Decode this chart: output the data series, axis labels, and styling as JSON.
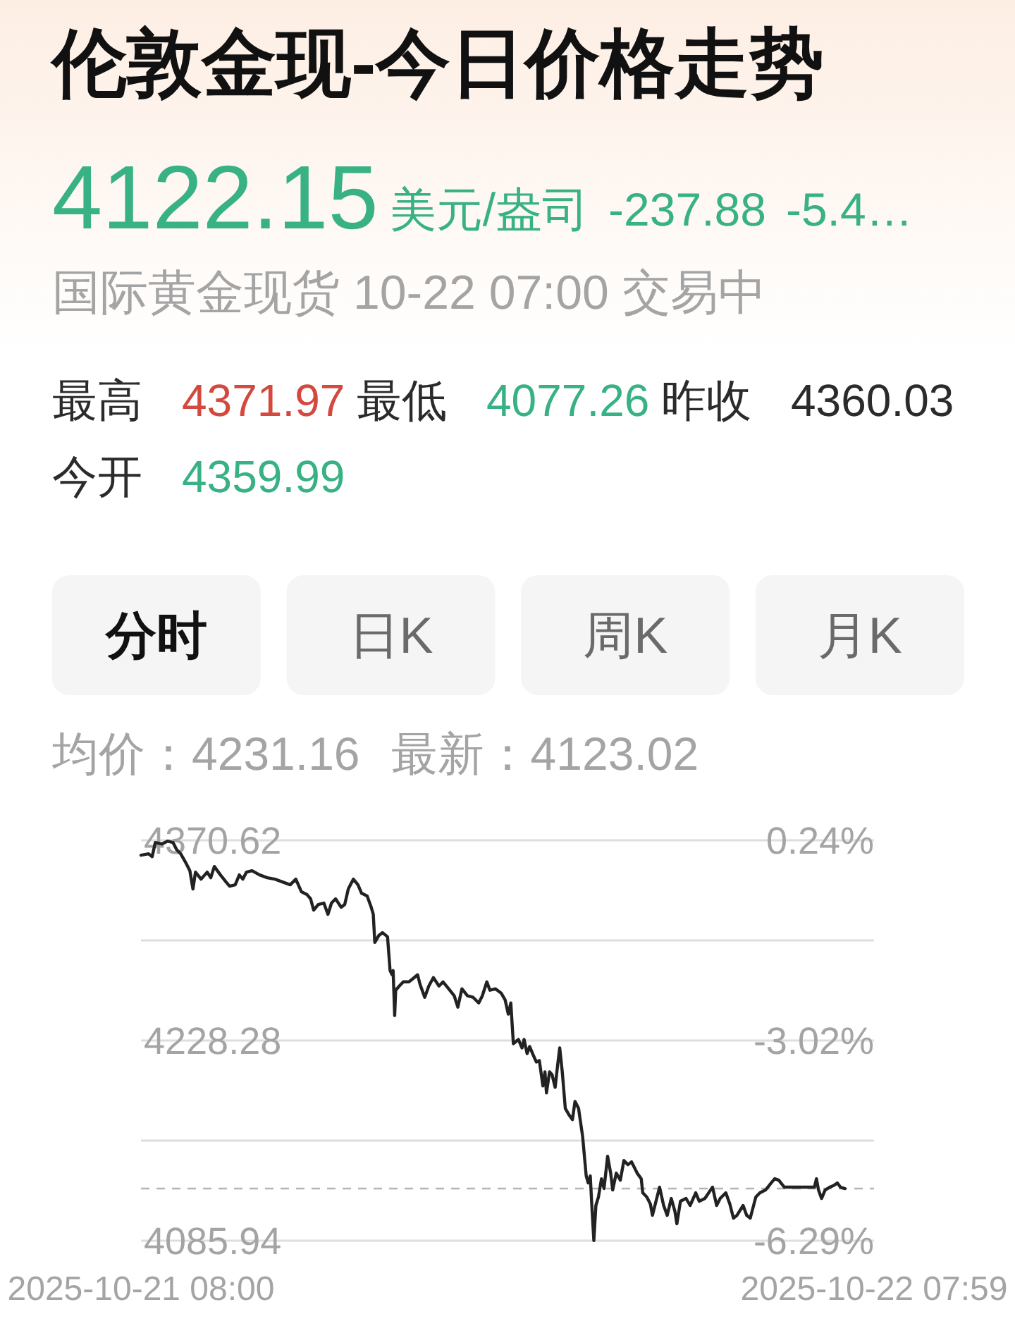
{
  "chart_data": {
    "type": "line",
    "title": "伦敦金现-今日价格走势",
    "subtitle": "国际黄金现货 10-22 07:00 交易中",
    "annotations": [
      "4122.15",
      "美元/盎司",
      "-237.88",
      "-5.4…",
      "最高",
      "4371.97",
      "最低",
      "4077.26",
      "昨收",
      "4360.03",
      "今开",
      "4359.99",
      "分时",
      "日K",
      "周K",
      "月K",
      "均价：4231.16",
      "最新：4123.02"
    ],
    "x": [
      "2025-10-21T08:00",
      "2025-10-21T08:15",
      "2025-10-21T08:22",
      "2025-10-21T08:28",
      "2025-10-21T08:41",
      "2025-10-21T08:52",
      "2025-10-21T09:03",
      "2025-10-21T09:10",
      "2025-10-21T09:18",
      "2025-10-21T09:29",
      "2025-10-21T09:36",
      "2025-10-21T09:42",
      "2025-10-21T09:47",
      "2025-10-21T09:58",
      "2025-10-21T10:10",
      "2025-10-21T10:17",
      "2025-10-21T10:24",
      "2025-10-21T10:36",
      "2025-10-21T10:47",
      "2025-10-21T10:54",
      "2025-10-21T11:05",
      "2025-10-21T11:13",
      "2025-10-21T11:20",
      "2025-10-21T11:27",
      "2025-10-21T11:38",
      "2025-10-21T11:53",
      "2025-10-21T12:08",
      "2025-10-21T12:23",
      "2025-10-21T12:38",
      "2025-10-21T12:53",
      "2025-10-21T13:04",
      "2025-10-21T13:15",
      "2025-10-21T13:26",
      "2025-10-21T13:33",
      "2025-10-21T13:39",
      "2025-10-21T13:48",
      "2025-10-21T13:59",
      "2025-10-21T14:07",
      "2025-10-21T14:14",
      "2025-10-21T14:22",
      "2025-10-21T14:33",
      "2025-10-21T14:40",
      "2025-10-21T14:47",
      "2025-10-21T14:57",
      "2025-10-21T15:06",
      "2025-10-21T15:13",
      "2025-10-21T15:24",
      "2025-10-21T15:32",
      "2025-10-21T15:36",
      "2025-10-21T15:39",
      "2025-10-21T15:47",
      "2025-10-21T15:54",
      "2025-10-21T16:04",
      "2025-10-21T16:09",
      "2025-10-21T16:13",
      "2025-10-21T16:15",
      "2025-10-21T16:18",
      "2025-10-21T16:20",
      "2025-10-21T16:27",
      "2025-10-21T16:35",
      "2025-10-21T16:46",
      "2025-10-21T16:53",
      "2025-10-21T17:03",
      "2025-10-21T17:08",
      "2025-10-21T17:17",
      "2025-10-21T17:25",
      "2025-10-21T17:34",
      "2025-10-21T17:45",
      "2025-10-21T17:53",
      "2025-10-21T18:04",
      "2025-10-21T18:15",
      "2025-10-21T18:22",
      "2025-10-21T18:30",
      "2025-10-21T18:41",
      "2025-10-21T18:52",
      "2025-10-21T19:03",
      "2025-10-21T19:10",
      "2025-10-21T19:19",
      "2025-10-21T19:25",
      "2025-10-21T19:36",
      "2025-10-21T19:47",
      "2025-10-21T19:55",
      "2025-10-21T20:01",
      "2025-10-21T20:06",
      "2025-10-21T20:11",
      "2025-10-21T20:21",
      "2025-10-21T20:28",
      "2025-10-21T20:32",
      "2025-10-21T20:38",
      "2025-10-21T20:43",
      "2025-10-21T20:50",
      "2025-10-21T20:56",
      "2025-10-21T21:02",
      "2025-10-21T21:09",
      "2025-10-21T21:13",
      "2025-10-21T21:16",
      "2025-10-21T21:22",
      "2025-10-21T21:27",
      "2025-10-21T21:33",
      "2025-10-21T21:38",
      "2025-10-21T21:42",
      "2025-10-21T21:47",
      "2025-10-21T21:53",
      "2025-10-21T22:01",
      "2025-10-21T22:07",
      "2025-10-21T22:12",
      "2025-10-21T22:19",
      "2025-10-21T22:27",
      "2025-10-21T22:34",
      "2025-10-21T22:38",
      "2025-10-21T22:42",
      "2025-10-21T22:45",
      "2025-10-21T22:49",
      "2025-10-21T22:53",
      "2025-10-21T22:58",
      "2025-10-21T23:04",
      "2025-10-21T23:09",
      "2025-10-21T23:16",
      "2025-10-21T23:22",
      "2025-10-21T23:26",
      "2025-10-21T23:33",
      "2025-10-21T23:41",
      "2025-10-21T23:48",
      "2025-10-21T23:56",
      "2025-10-22T00:03",
      "2025-10-22T00:14",
      "2025-10-22T00:22",
      "2025-10-22T00:25",
      "2025-10-22T00:33",
      "2025-10-22T00:40",
      "2025-10-22T00:44",
      "2025-10-22T00:51",
      "2025-10-22T00:58",
      "2025-10-22T01:06",
      "2025-10-22T01:13",
      "2025-10-22T01:21",
      "2025-10-22T01:28",
      "2025-10-22T01:32",
      "2025-10-22T01:39",
      "2025-10-22T01:50",
      "2025-10-22T01:58",
      "2025-10-22T02:09",
      "2025-10-22T02:16",
      "2025-10-22T02:27",
      "2025-10-22T02:42",
      "2025-10-22T02:50",
      "2025-10-22T02:57",
      "2025-10-22T03:08",
      "2025-10-22T03:16",
      "2025-10-22T03:23",
      "2025-10-22T03:30",
      "2025-10-22T03:42",
      "2025-10-22T03:49",
      "2025-10-22T03:56",
      "2025-10-22T04:07",
      "2025-10-22T04:15",
      "2025-10-22T04:26",
      "2025-10-22T04:37",
      "2025-10-22T04:44",
      "2025-10-22T04:52",
      "2025-10-22T05:03",
      "2025-10-22T06:02",
      "2025-10-22T06:06",
      "2025-10-22T06:10",
      "2025-10-22T06:16",
      "2025-10-22T06:23",
      "2025-10-22T06:32",
      "2025-10-22T06:39",
      "2025-10-22T06:47",
      "2025-10-22T06:53",
      "2025-10-22T07:02"
    ],
    "series": [
      {
        "color": "#222222",
        "values": [
          4360,
          4361,
          4359,
          4369,
          4368,
          4370,
          4369,
          4364,
          4361,
          4354,
          4349,
          4336,
          4348,
          4343,
          4348,
          4344,
          4352,
          4346,
          4341,
          4338,
          4339,
          4346,
          4343,
          4348,
          4349,
          4346,
          4344,
          4343,
          4341,
          4339,
          4343,
          4334,
          4332,
          4329,
          4321,
          4325,
          4326,
          4318,
          4326,
          4329,
          4323,
          4325,
          4336,
          4343,
          4339,
          4333,
          4331,
          4323,
          4318,
          4298,
          4303,
          4305,
          4302,
          4278,
          4275,
          4278,
          4246,
          4264,
          4267,
          4270,
          4270,
          4272,
          4275,
          4268,
          4259,
          4267,
          4273,
          4267,
          4270,
          4265,
          4260,
          4252,
          4265,
          4260,
          4259,
          4255,
          4260,
          4270,
          4264,
          4265,
          4262,
          4257,
          4247,
          4255,
          4226,
          4229,
          4223,
          4229,
          4219,
          4224,
          4218,
          4213,
          4214,
          4196,
          4206,
          4191,
          4206,
          4204,
          4195,
          4211,
          4223,
          4206,
          4180,
          4175,
          4172,
          4185,
          4180,
          4160,
          4132,
          4127,
          4132,
          4111,
          4086,
          4111,
          4117,
          4130,
          4123,
          4146,
          4134,
          4122,
          4134,
          4129,
          4143,
          4140,
          4142,
          4134,
          4130,
          4120,
          4117,
          4112,
          4104,
          4114,
          4124,
          4111,
          4104,
          4116,
          4107,
          4098,
          4114,
          4116,
          4111,
          4120,
          4114,
          4116,
          4124,
          4111,
          4116,
          4120,
          4112,
          4102,
          4104,
          4111,
          4104,
          4102,
          4117,
          4120,
          4122,
          4127,
          4130,
          4129,
          4124,
          4124,
          4130,
          4122,
          4116,
          4122,
          4124,
          4125,
          4127,
          4124,
          4123
        ]
      }
    ],
    "xlim": [
      "2025-10-21T08:00",
      "2025-10-22T07:59"
    ],
    "xticks": [
      {
        "value": "2025-10-21T08:00",
        "label": "2025-10-21 08:00"
      },
      {
        "value": "2025-10-22T07:59",
        "label": "2025-10-22 07:59"
      }
    ],
    "ylim": [
      4085.94,
      4370.62
    ],
    "yticks": [
      4085.94,
      {
        "value": 4157.11,
        "label": null
      },
      4228.28,
      {
        "value": 4299.45,
        "label": null
      },
      4370.62
    ],
    "y2lim": [
      -6.29,
      0.24
    ],
    "y2ticks": [
      {
        "value": -6.29,
        "label": "-6.29%"
      },
      {
        "value": -3.02,
        "label": "-3.02%"
      },
      {
        "value": 0.24,
        "label": "0.24%"
      }
    ],
    "grid": "y",
    "ref_lines": [
      {
        "axis": "y",
        "value": 4123.02,
        "color": "#b4b4b4",
        "line_style": "dashed"
      }
    ]
  }
}
